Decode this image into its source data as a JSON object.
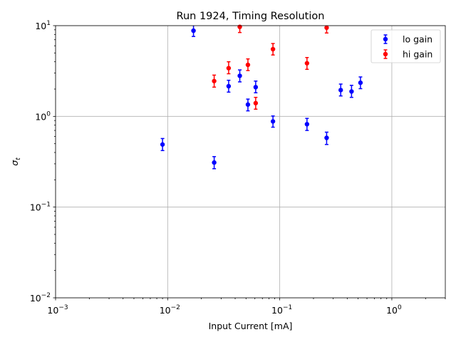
{
  "chart_data": {
    "type": "scatter",
    "title": "Run 1924, Timing Resolution",
    "xlabel": "Input Current [mA]",
    "ylabel": "σ",
    "ylabel_sub": "t",
    "xscale": "log",
    "yscale": "log",
    "xlim": [
      0.001,
      3.0
    ],
    "ylim": [
      0.01,
      10
    ],
    "xticks": [
      {
        "value": 0.001,
        "base": "10",
        "exp": "−3"
      },
      {
        "value": 0.01,
        "base": "10",
        "exp": "−2"
      },
      {
        "value": 0.1,
        "base": "10",
        "exp": "−1"
      },
      {
        "value": 1,
        "base": "10",
        "exp": "0"
      }
    ],
    "yticks": [
      {
        "value": 0.01,
        "base": "10",
        "exp": "−2"
      },
      {
        "value": 0.1,
        "base": "10",
        "exp": "−1"
      },
      {
        "value": 1,
        "base": "10",
        "exp": "0"
      },
      {
        "value": 10,
        "base": "10",
        "exp": "1"
      }
    ],
    "grid": true,
    "legend_position": "top-right",
    "series": [
      {
        "name": "lo gain",
        "color": "#0000ff",
        "points": [
          {
            "x": 0.009,
            "y": 0.49,
            "lo": 0.42,
            "hi": 0.57
          },
          {
            "x": 0.017,
            "y": 8.8,
            "lo": 7.6,
            "hi": 10.0
          },
          {
            "x": 0.026,
            "y": 0.31,
            "lo": 0.265,
            "hi": 0.36
          },
          {
            "x": 0.035,
            "y": 2.15,
            "lo": 1.85,
            "hi": 2.5
          },
          {
            "x": 0.044,
            "y": 2.8,
            "lo": 2.4,
            "hi": 3.25
          },
          {
            "x": 0.052,
            "y": 1.35,
            "lo": 1.15,
            "hi": 1.55
          },
          {
            "x": 0.061,
            "y": 2.1,
            "lo": 1.82,
            "hi": 2.45
          },
          {
            "x": 0.087,
            "y": 0.88,
            "lo": 0.76,
            "hi": 1.01
          },
          {
            "x": 0.175,
            "y": 0.82,
            "lo": 0.7,
            "hi": 0.95
          },
          {
            "x": 0.262,
            "y": 0.58,
            "lo": 0.49,
            "hi": 0.67
          },
          {
            "x": 0.35,
            "y": 1.95,
            "lo": 1.68,
            "hi": 2.27
          },
          {
            "x": 0.437,
            "y": 1.88,
            "lo": 1.62,
            "hi": 2.2
          },
          {
            "x": 0.525,
            "y": 2.35,
            "lo": 2.02,
            "hi": 2.72
          }
        ]
      },
      {
        "name": "hi gain",
        "color": "#ff0000",
        "points": [
          {
            "x": 0.026,
            "y": 2.45,
            "lo": 2.1,
            "hi": 2.85
          },
          {
            "x": 0.035,
            "y": 3.4,
            "lo": 2.95,
            "hi": 4.0
          },
          {
            "x": 0.044,
            "y": 9.7,
            "lo": 8.4,
            "hi": 10.0
          },
          {
            "x": 0.052,
            "y": 3.7,
            "lo": 3.2,
            "hi": 4.3
          },
          {
            "x": 0.061,
            "y": 1.4,
            "lo": 1.2,
            "hi": 1.62
          },
          {
            "x": 0.087,
            "y": 5.5,
            "lo": 4.75,
            "hi": 6.35
          },
          {
            "x": 0.175,
            "y": 3.85,
            "lo": 3.3,
            "hi": 4.45
          },
          {
            "x": 0.262,
            "y": 9.5,
            "lo": 8.3,
            "hi": 10.0
          }
        ]
      }
    ]
  }
}
